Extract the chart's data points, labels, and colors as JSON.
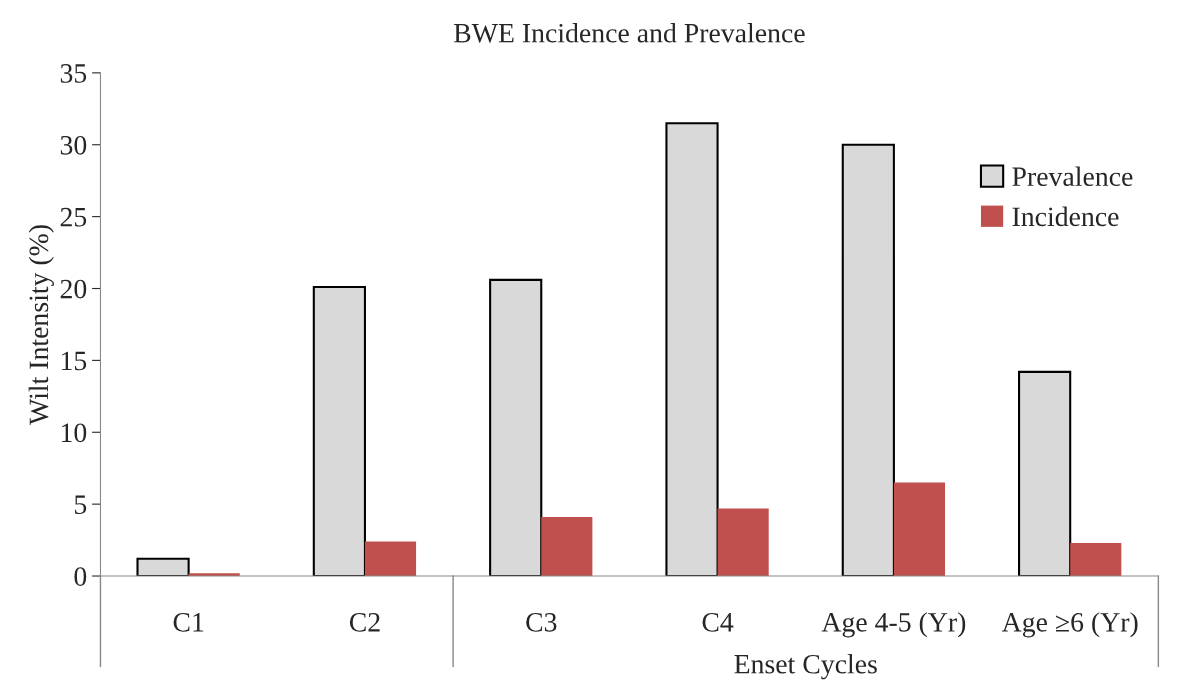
{
  "chart_data": {
    "type": "bar",
    "title": "BWE Incidence and Prevalence",
    "xlabel": "Enset Cycles",
    "ylabel": "Wilt Intensity (%)",
    "categories": [
      "C1",
      "C2",
      "C3",
      "C4",
      "Age 4-5 (Yr)",
      "Age ≥6 (Yr)"
    ],
    "series": [
      {
        "name": "Prevalence",
        "color": "#d9d9d9",
        "values": [
          1.2,
          20.1,
          20.6,
          31.5,
          30.0,
          14.2
        ]
      },
      {
        "name": "Incidence",
        "color": "#c0504d",
        "values": [
          0.2,
          2.4,
          4.1,
          4.7,
          6.5,
          2.3
        ]
      }
    ],
    "ylim": [
      0,
      35
    ],
    "yticks": [
      0,
      5,
      10,
      15,
      20,
      25,
      30,
      35
    ],
    "grid": false,
    "legend": "right"
  }
}
